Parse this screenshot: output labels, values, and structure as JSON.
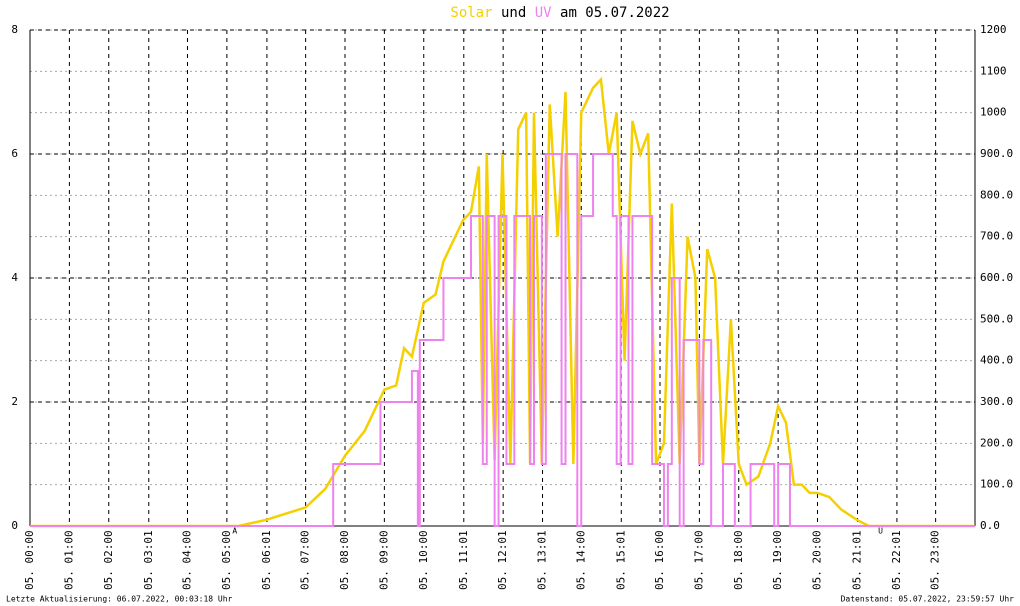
{
  "chart_data": {
    "type": "line",
    "title_connector": "und",
    "title_suffix": "am 05.07.2022",
    "footer_left": "Letzte Aktualisierung: 06.07.2022, 00:03:18 Uhr",
    "footer_right": "Datenstand: 05.07.2022, 23:59:57 Uhr",
    "xlim": [
      0,
      24
    ],
    "xticks": [
      {
        "value": 0,
        "label": "05. 00:00"
      },
      {
        "value": 1,
        "label": "05. 01:00"
      },
      {
        "value": 2,
        "label": "05. 02:00"
      },
      {
        "value": 3.0167,
        "label": "05. 03:01"
      },
      {
        "value": 4,
        "label": "05. 04:00"
      },
      {
        "value": 5,
        "label": "05. 05:00"
      },
      {
        "value": 6.0167,
        "label": "05. 06:01"
      },
      {
        "value": 7,
        "label": "05. 07:00"
      },
      {
        "value": 8,
        "label": "05. 08:00"
      },
      {
        "value": 9,
        "label": "05. 09:00"
      },
      {
        "value": 10,
        "label": "05. 10:00"
      },
      {
        "value": 11.0167,
        "label": "05. 11:01"
      },
      {
        "value": 12.0167,
        "label": "05. 12:01"
      },
      {
        "value": 13.0167,
        "label": "05. 13:01"
      },
      {
        "value": 14,
        "label": "05. 14:00"
      },
      {
        "value": 15.0167,
        "label": "05. 15:01"
      },
      {
        "value": 16,
        "label": "05. 16:00"
      },
      {
        "value": 17,
        "label": "05. 17:00"
      },
      {
        "value": 18,
        "label": "05. 18:00"
      },
      {
        "value": 19,
        "label": "05. 19:00"
      },
      {
        "value": 20,
        "label": "05. 20:00"
      },
      {
        "value": 21.0167,
        "label": "05. 21:01"
      },
      {
        "value": 22.0167,
        "label": "05. 22:01"
      },
      {
        "value": 23,
        "label": "05. 23:00"
      }
    ],
    "ylim": [
      0,
      8
    ],
    "yticks": [
      0,
      2,
      4,
      6,
      8
    ],
    "y2lim": [
      0,
      1200
    ],
    "y2ticks": [
      {
        "value": 0,
        "label": "0.0"
      },
      {
        "value": 100,
        "label": "100.0"
      },
      {
        "value": 200,
        "label": "200.0"
      },
      {
        "value": 300,
        "label": "300.0"
      },
      {
        "value": 400,
        "label": "400.0"
      },
      {
        "value": 500,
        "label": "500.0"
      },
      {
        "value": 600,
        "label": "600.0"
      },
      {
        "value": 700,
        "label": "700.0"
      },
      {
        "value": 800,
        "label": "800.0"
      },
      {
        "value": 900,
        "label": "900.0"
      },
      1000,
      1100,
      1200
    ],
    "grid": true,
    "annotations": [
      {
        "text": "A",
        "x": 5.2
      },
      {
        "text": "U",
        "x": 21.6
      }
    ],
    "annotation_color": "#ff4040",
    "series": [
      {
        "name": "Solar",
        "color": "#f5d000",
        "axis": "y2",
        "x": [
          0,
          5.3,
          6.0,
          7.0,
          7.5,
          8.0,
          8.5,
          9.0,
          9.3,
          9.5,
          9.7,
          10.0,
          10.3,
          10.5,
          11.0,
          11.2,
          11.4,
          11.5,
          11.6,
          11.8,
          12.0,
          12.2,
          12.4,
          12.6,
          12.7,
          12.8,
          13.0,
          13.2,
          13.4,
          13.6,
          13.8,
          14.0,
          14.3,
          14.5,
          14.7,
          14.9,
          15.1,
          15.3,
          15.5,
          15.7,
          15.9,
          16.1,
          16.3,
          16.5,
          16.7,
          16.9,
          17.0,
          17.2,
          17.4,
          17.6,
          17.8,
          18.0,
          18.2,
          18.5,
          18.8,
          19.0,
          19.2,
          19.4,
          19.6,
          19.8,
          20.0,
          20.3,
          20.6,
          21.0,
          21.3,
          24
        ],
        "values": [
          0,
          0,
          15,
          45,
          90,
          170,
          230,
          330,
          340,
          430,
          410,
          540,
          560,
          640,
          740,
          760,
          870,
          200,
          900,
          160,
          900,
          150,
          960,
          1000,
          150,
          1000,
          150,
          1020,
          700,
          1050,
          150,
          1000,
          1060,
          1080,
          900,
          1000,
          400,
          980,
          900,
          950,
          150,
          200,
          780,
          150,
          700,
          600,
          150,
          670,
          600,
          150,
          500,
          150,
          100,
          120,
          200,
          290,
          250,
          100,
          100,
          80,
          80,
          70,
          40,
          15,
          0,
          0
        ]
      },
      {
        "name": "UV",
        "color": "#ee82ee",
        "axis": "y",
        "drawstyle": "steps-post",
        "x": [
          0,
          7.7,
          8.9,
          9.7,
          9.85,
          9.9,
          10.5,
          11.2,
          11.5,
          11.6,
          11.8,
          11.9,
          12.1,
          12.3,
          12.7,
          12.8,
          13.0,
          13.1,
          13.5,
          13.6,
          13.9,
          14.0,
          14.3,
          14.8,
          14.9,
          15.0,
          15.2,
          15.3,
          15.8,
          16.1,
          16.2,
          16.3,
          16.5,
          16.6,
          17.0,
          17.1,
          17.3,
          17.6,
          17.9,
          18.3,
          18.9,
          19.0,
          19.3,
          24
        ],
        "values": [
          0,
          1,
          2,
          2.5,
          0,
          3,
          4,
          5,
          1,
          5,
          0,
          5,
          1,
          5,
          1,
          5,
          1,
          6,
          1,
          6,
          0,
          5,
          6,
          5,
          1,
          5,
          1,
          5,
          1,
          0,
          1,
          4,
          0,
          3,
          1,
          3,
          0,
          1,
          0,
          1,
          0,
          1,
          0,
          0
        ]
      }
    ]
  }
}
